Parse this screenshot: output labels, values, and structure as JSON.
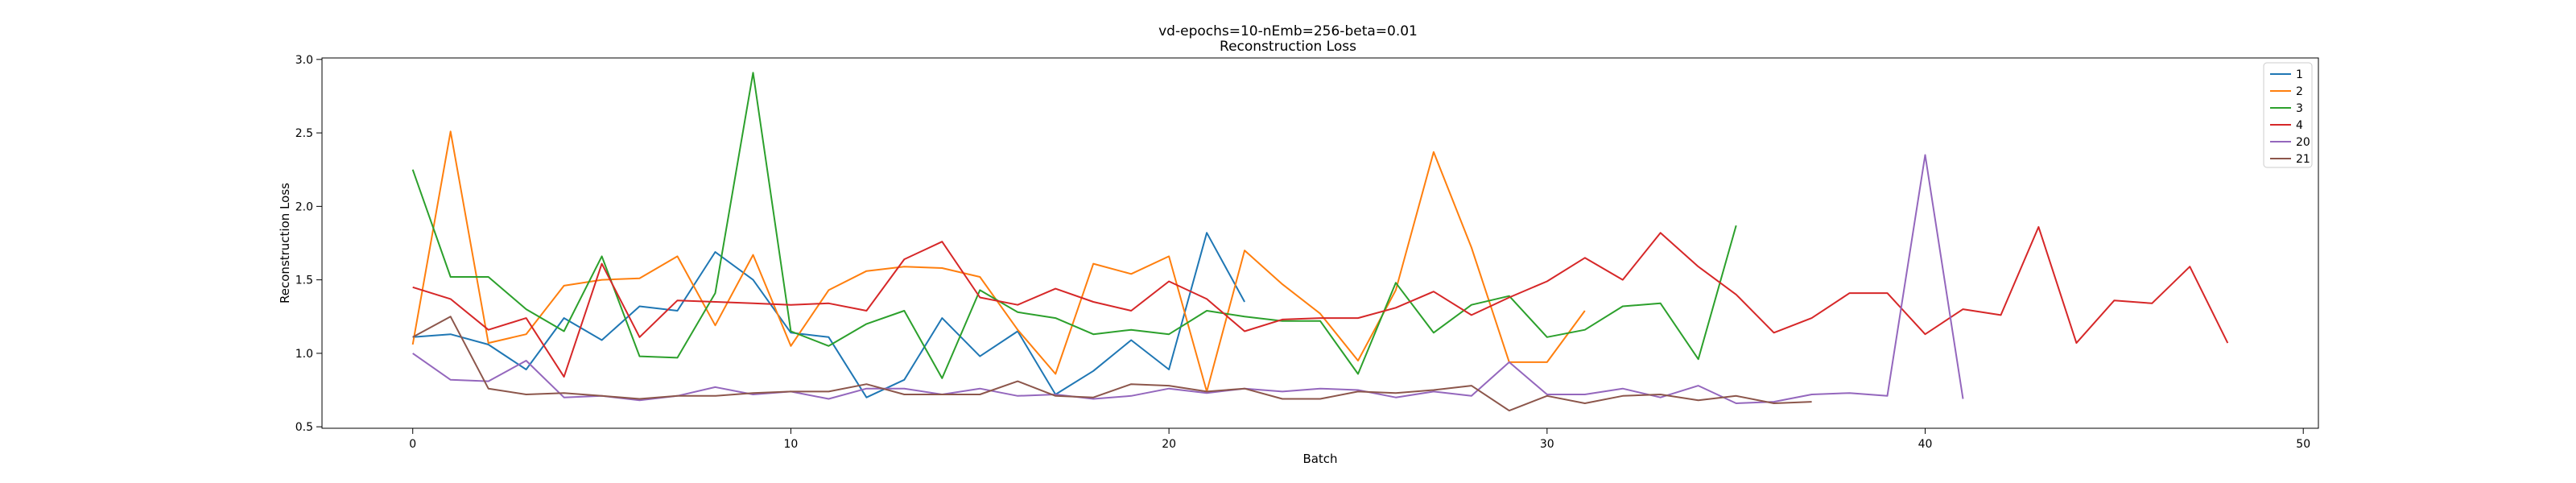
{
  "chart_data": {
    "type": "line",
    "title": [
      "vd-epochs=10-nEmb=256-beta=0.01",
      "Reconstruction Loss"
    ],
    "xlabel": "Batch",
    "ylabel": "Reconstruction Loss",
    "xlim": [
      -2.4,
      50.4
    ],
    "ylim": [
      0.49,
      3.01
    ],
    "xticks": [
      0,
      10,
      20,
      30,
      40,
      50
    ],
    "yticks": [
      0.5,
      1.0,
      1.5,
      2.0,
      2.5,
      3.0
    ],
    "ytick_labels": [
      "0.5",
      "1.0",
      "1.5",
      "2.0",
      "2.5",
      "3.0"
    ],
    "grid": false,
    "legend_position": "top-right",
    "series": [
      {
        "name": "1",
        "color": "#1f77b4",
        "x": [
          0,
          1,
          2,
          3,
          4,
          5,
          6,
          7,
          8,
          9,
          10,
          11,
          12,
          13,
          14,
          15,
          16,
          17,
          18,
          19,
          20,
          21,
          22
        ],
        "y": [
          1.11,
          1.13,
          1.06,
          0.89,
          1.24,
          1.09,
          1.32,
          1.29,
          1.69,
          1.5,
          1.14,
          1.11,
          0.7,
          0.82,
          1.24,
          0.98,
          1.15,
          0.72,
          0.88,
          1.09,
          0.89,
          1.82,
          1.35
        ]
      },
      {
        "name": "2",
        "color": "#ff7f0e",
        "x": [
          0,
          1,
          2,
          3,
          4,
          5,
          6,
          7,
          8,
          9,
          10,
          11,
          12,
          13,
          14,
          15,
          16,
          17,
          18,
          19,
          20,
          21,
          22,
          23,
          24,
          25,
          26,
          27,
          28,
          29,
          30,
          31
        ],
        "y": [
          1.06,
          2.51,
          1.07,
          1.13,
          1.46,
          1.5,
          1.51,
          1.66,
          1.19,
          1.67,
          1.05,
          1.43,
          1.56,
          1.59,
          1.58,
          1.52,
          1.16,
          0.86,
          1.61,
          1.54,
          1.66,
          0.74,
          1.7,
          1.47,
          1.27,
          0.95,
          1.43,
          2.37,
          1.72,
          0.94,
          0.94,
          1.29
        ]
      },
      {
        "name": "3",
        "color": "#2ca02c",
        "x": [
          0,
          1,
          2,
          3,
          4,
          5,
          6,
          7,
          8,
          9,
          10,
          11,
          12,
          13,
          14,
          15,
          16,
          17,
          18,
          19,
          20,
          21,
          22,
          23,
          24,
          25,
          26,
          27,
          28,
          29,
          30,
          31,
          32,
          33,
          34,
          35
        ],
        "y": [
          2.25,
          1.52,
          1.52,
          1.3,
          1.15,
          1.66,
          0.98,
          0.97,
          1.41,
          2.91,
          1.15,
          1.05,
          1.2,
          1.29,
          0.83,
          1.43,
          1.28,
          1.24,
          1.13,
          1.16,
          1.13,
          1.29,
          1.25,
          1.22,
          1.22,
          0.86,
          1.48,
          1.14,
          1.33,
          1.39,
          1.11,
          1.16,
          1.32,
          1.34,
          0.96,
          1.87
        ]
      },
      {
        "name": "4",
        "color": "#d62728",
        "x": [
          0,
          1,
          2,
          3,
          4,
          5,
          6,
          7,
          8,
          9,
          10,
          11,
          12,
          13,
          14,
          15,
          16,
          17,
          18,
          19,
          20,
          21,
          22,
          23,
          24,
          25,
          26,
          27,
          28,
          29,
          30,
          31,
          32,
          33,
          34,
          35,
          36,
          37,
          38,
          39,
          40,
          41,
          42,
          43,
          44,
          45,
          46,
          47,
          48
        ],
        "y": [
          1.45,
          1.37,
          1.16,
          1.24,
          0.84,
          1.61,
          1.11,
          1.36,
          1.35,
          1.34,
          1.33,
          1.34,
          1.29,
          1.64,
          1.76,
          1.38,
          1.33,
          1.44,
          1.35,
          1.29,
          1.49,
          1.37,
          1.15,
          1.23,
          1.24,
          1.24,
          1.31,
          1.42,
          1.26,
          1.38,
          1.49,
          1.65,
          1.5,
          1.82,
          1.59,
          1.4,
          1.14,
          1.24,
          1.41,
          1.41,
          1.13,
          1.3,
          1.26,
          1.86,
          1.07,
          1.36,
          1.34,
          1.59,
          1.07
        ]
      },
      {
        "name": "20",
        "color": "#9467bd",
        "x": [
          0,
          1,
          2,
          3,
          4,
          5,
          6,
          7,
          8,
          9,
          10,
          11,
          12,
          13,
          14,
          15,
          16,
          17,
          18,
          19,
          20,
          21,
          22,
          23,
          24,
          25,
          26,
          27,
          28,
          29,
          30,
          31,
          32,
          33,
          34,
          35,
          36,
          37,
          38,
          39,
          40,
          41
        ],
        "y": [
          1.0,
          0.82,
          0.81,
          0.95,
          0.7,
          0.71,
          0.68,
          0.71,
          0.77,
          0.72,
          0.74,
          0.69,
          0.76,
          0.76,
          0.72,
          0.76,
          0.71,
          0.72,
          0.69,
          0.71,
          0.76,
          0.73,
          0.76,
          0.74,
          0.76,
          0.75,
          0.7,
          0.74,
          0.71,
          0.94,
          0.72,
          0.72,
          0.76,
          0.7,
          0.78,
          0.66,
          0.67,
          0.72,
          0.73,
          0.71,
          2.35,
          0.69
        ]
      },
      {
        "name": "21",
        "color": "#8c564b",
        "x": [
          0,
          1,
          2,
          3,
          4,
          5,
          6,
          7,
          8,
          9,
          10,
          11,
          12,
          13,
          14,
          15,
          16,
          17,
          18,
          19,
          20,
          21,
          22,
          23,
          24,
          25,
          26,
          27,
          28,
          29,
          30,
          31,
          32,
          33,
          34,
          35,
          36,
          37
        ],
        "y": [
          1.11,
          1.25,
          0.76,
          0.72,
          0.73,
          0.71,
          0.69,
          0.71,
          0.71,
          0.73,
          0.74,
          0.74,
          0.79,
          0.72,
          0.72,
          0.72,
          0.81,
          0.71,
          0.7,
          0.79,
          0.78,
          0.74,
          0.76,
          0.69,
          0.69,
          0.74,
          0.73,
          0.75,
          0.78,
          0.61,
          0.71,
          0.66,
          0.71,
          0.72,
          0.68,
          0.71,
          0.66,
          0.67
        ]
      }
    ]
  }
}
